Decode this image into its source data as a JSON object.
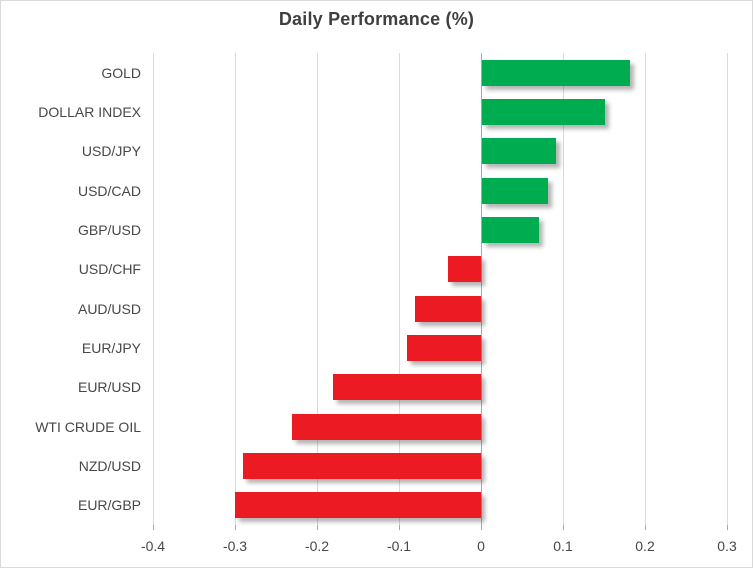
{
  "chart_data": {
    "type": "bar",
    "orientation": "horizontal",
    "title": "Daily Performance (%)",
    "categories": [
      "GOLD",
      "DOLLAR INDEX",
      "USD/JPY",
      "USD/CAD",
      "GBP/USD",
      "USD/CHF",
      "AUD/USD",
      "EUR/JPY",
      "EUR/USD",
      "WTI CRUDE OIL",
      "NZD/USD",
      "EUR/GBP"
    ],
    "values": [
      0.18,
      0.15,
      0.09,
      0.08,
      0.07,
      -0.04,
      -0.08,
      -0.09,
      -0.18,
      -0.23,
      -0.29,
      -0.3
    ],
    "x_ticks": [
      -0.4,
      -0.3,
      -0.2,
      -0.1,
      0,
      0.1,
      0.2,
      0.3
    ],
    "x_tick_labels": [
      "-0.4",
      "-0.3",
      "-0.2",
      "-0.1",
      "0",
      "0.1",
      "0.2",
      "0.3"
    ],
    "xlim": [
      -0.4,
      0.3
    ],
    "grid": "vertical-only",
    "legend": "none",
    "colors": {
      "positive_bar": "#00AC50",
      "negative_bar": "#EC1B23",
      "gridline": "#d9d9d9",
      "zero_axis_line": "#a9a9a9",
      "tick_mark": "#a9a9a9",
      "text": "#474747",
      "title_text": "#3f3f3f",
      "chart_border": "#d9d9d9",
      "background": "#ffffff"
    }
  }
}
